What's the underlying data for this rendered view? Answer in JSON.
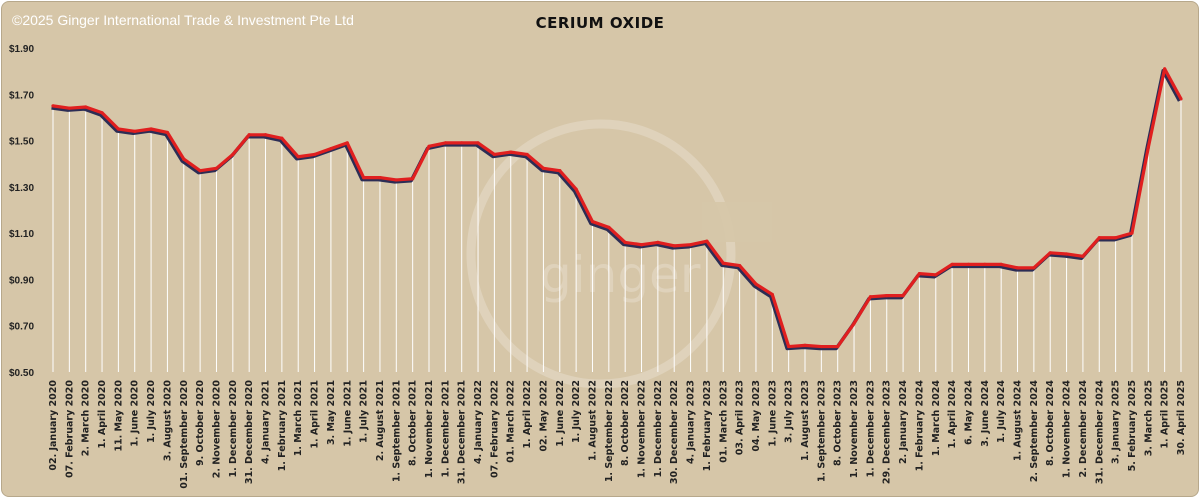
{
  "copyright": "©2025 Ginger International Trade & Investment Pte Ltd",
  "watermark": "ginger",
  "colors": {
    "background": "#d6c6a8",
    "line": "#e01f1f",
    "shadow": "#2c2d55",
    "drop_lines": "#ffffff"
  },
  "chart_data": {
    "type": "line",
    "title": "CERIUM OXIDE",
    "xlabel": "",
    "ylabel": "",
    "ylim": [
      0.5,
      1.9
    ],
    "y_ticks": [
      "$0.50",
      "$0.70",
      "$0.90",
      "$1.10",
      "$1.30",
      "$1.50",
      "$1.70",
      "$1.90"
    ],
    "y_tick_values": [
      0.5,
      0.7,
      0.9,
      1.1,
      1.3,
      1.5,
      1.7,
      1.9
    ],
    "grid": false,
    "legend": "none",
    "x": [
      "02. January 2020",
      "07. February 2020",
      "2. March 2020",
      "1. April 2020",
      "11. May 2020",
      "1. June 2020",
      "1. July 2020",
      "3. August 2020",
      "01. September 2020",
      "9. October 2020",
      "2. November 2020",
      "1. December 2020",
      "31. December 2020",
      "4. January 2021",
      "1. February 2021",
      "1. March 2021",
      "1. April 2021",
      "3. May 2021",
      "1. June 2021",
      "1. July 2021",
      "2. August 2021",
      "1. September 2021",
      "8. October 2021",
      "1. November 2021",
      "1. December 2021",
      "31. December 2021",
      "4. January 2022",
      "07. February 2022",
      "01. March 2022",
      "1. April 2022",
      "02. May 2022",
      "1. June 2022",
      "1. July 2022",
      "1. August 2022",
      "1. September 2022",
      "8. October 2022",
      "1. November 2022",
      "1. December 2022",
      "30. December 2022",
      "4. January 2023",
      "1. February 2023",
      "01. March 2023",
      "03. April 2023",
      "04. May 2023",
      "1. June 2023",
      "3. July 2023",
      "1. August 2023",
      "1. September 2023",
      "8. October 2023",
      "1. November 2023",
      "1. December 2023",
      "29. December 2023",
      "2. January 2024",
      "1. February 2024",
      "1. March 2024",
      "1. April 2024",
      "6. May 2024",
      "3. June 2024",
      "1. July 2024",
      "1. August 2024",
      "2. September 2024",
      "8. October 2024",
      "1. November 2024",
      "2. December 2024",
      "31. December 2024",
      "3. January 2025",
      "5. February 2025",
      "3. March 2025",
      "1. April 2025",
      "30. April 2025"
    ],
    "series": [
      {
        "values": [
          1.65,
          1.64,
          1.645,
          1.62,
          1.55,
          1.54,
          1.55,
          1.535,
          1.42,
          1.37,
          1.38,
          1.44,
          1.525,
          1.525,
          1.51,
          1.43,
          1.44,
          1.465,
          1.49,
          1.34,
          1.34,
          1.33,
          1.335,
          1.475,
          1.49,
          1.49,
          1.49,
          1.44,
          1.45,
          1.44,
          1.38,
          1.37,
          1.29,
          1.15,
          1.125,
          1.06,
          1.05,
          1.06,
          1.045,
          1.05,
          1.065,
          0.97,
          0.96,
          0.88,
          0.835,
          0.61,
          0.615,
          0.61,
          0.61,
          0.71,
          0.825,
          0.83,
          0.83,
          0.925,
          0.92,
          0.965,
          0.965,
          0.965,
          0.965,
          0.95,
          0.95,
          1.015,
          1.01,
          1.0,
          1.08,
          1.08,
          1.1,
          1.47,
          1.81,
          1.68
        ]
      }
    ]
  }
}
